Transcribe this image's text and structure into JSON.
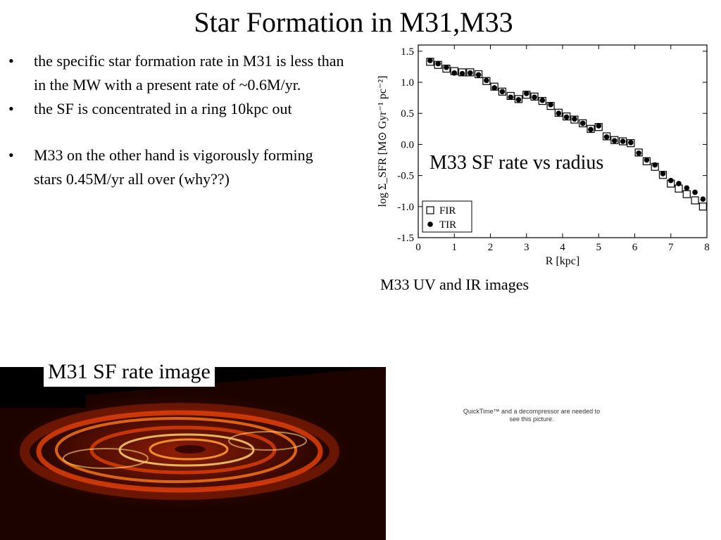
{
  "slide": {
    "title": "Star Formation in M31,M33",
    "bullets": [
      "the specific star formation rate in M31 is less than in the MW with a present rate of ~0.6M/yr.",
      "the SF is concentrated in a ring 10kpc out",
      "M33 on the other hand is vigorously forming stars 0.45M/yr  all over (why??)"
    ],
    "chart_caption": "M33 SF  rate vs radius",
    "uv_ir_caption": "M33 UV and IR images",
    "m31_label": "M31 SF rate image",
    "quicktime_placeholder": "QuickTime™ and a decompressor are needed to see this picture."
  },
  "chart_data": {
    "type": "scatter",
    "title": "",
    "xlabel": "R [kpc]",
    "ylabel": "log Σ_SFR [M⊙ Gyr⁻¹ pc⁻²]",
    "xlim": [
      0,
      8
    ],
    "ylim": [
      -1.5,
      1.6
    ],
    "x_ticks": [
      "0",
      "1",
      "2",
      "3",
      "4",
      "5",
      "6",
      "7",
      "8"
    ],
    "y_ticks": [
      "-1.5",
      "-1.0",
      "-0.5",
      "0.0",
      "0.5",
      "1.0",
      "1.5"
    ],
    "legend_placement": "bottom-left",
    "grid": false,
    "series": [
      {
        "name": "FIR",
        "marker": "open-square",
        "x": [
          0.33,
          0.55,
          0.78,
          1.0,
          1.22,
          1.44,
          1.67,
          1.89,
          2.11,
          2.33,
          2.56,
          2.78,
          3.0,
          3.22,
          3.44,
          3.67,
          3.89,
          4.11,
          4.33,
          4.56,
          4.78,
          5.0,
          5.22,
          5.44,
          5.67,
          5.89,
          6.11,
          6.33,
          6.56,
          6.78,
          7.0,
          7.22,
          7.44,
          7.67,
          7.89
        ],
        "y": [
          1.33,
          1.28,
          1.22,
          1.18,
          1.16,
          1.16,
          1.13,
          1.02,
          0.93,
          0.85,
          0.78,
          0.73,
          0.8,
          0.77,
          0.7,
          0.62,
          0.51,
          0.45,
          0.4,
          0.34,
          0.25,
          0.28,
          0.13,
          0.07,
          0.05,
          0.02,
          -0.13,
          -0.27,
          -0.36,
          -0.49,
          -0.63,
          -0.71,
          -0.8,
          -0.9,
          -1.0
        ]
      },
      {
        "name": "TIR",
        "marker": "filled-circle",
        "x": [
          0.33,
          0.55,
          0.78,
          1.0,
          1.22,
          1.44,
          1.67,
          1.89,
          2.11,
          2.33,
          2.56,
          2.78,
          3.0,
          3.22,
          3.44,
          3.67,
          3.89,
          4.11,
          4.33,
          4.56,
          4.78,
          5.0,
          5.22,
          5.44,
          5.67,
          5.89,
          6.11,
          6.33,
          6.56,
          6.78,
          7.0,
          7.22,
          7.44,
          7.67,
          7.89
        ],
        "y": [
          1.35,
          1.3,
          1.24,
          1.15,
          1.14,
          1.15,
          1.12,
          1.03,
          0.91,
          0.85,
          0.76,
          0.72,
          0.82,
          0.76,
          0.71,
          0.64,
          0.5,
          0.44,
          0.41,
          0.34,
          0.24,
          0.3,
          0.12,
          0.06,
          0.05,
          0.03,
          -0.14,
          -0.25,
          -0.33,
          -0.47,
          -0.58,
          -0.63,
          -0.7,
          -0.77,
          -0.88
        ]
      }
    ],
    "colors": {
      "markers": "#000000",
      "axes": "#000000"
    }
  },
  "m31_image": {
    "colors": {
      "background": "#000000",
      "dust": "#5a0f02",
      "ring": "#e0400a",
      "hot": "#ffd070"
    }
  }
}
